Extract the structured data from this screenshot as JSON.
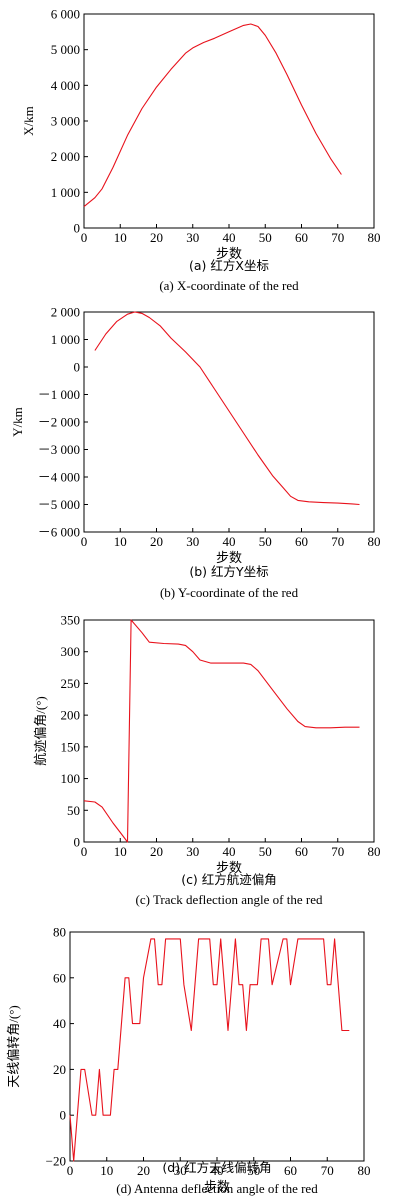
{
  "chart_data": [
    {
      "type": "line",
      "ylabel": "X/km",
      "xlabel": "步数",
      "caption_cn": "(a) 红方X坐标",
      "caption_en": "(a) X-coordinate of the red",
      "xlim": [
        0,
        80
      ],
      "ylim": [
        0,
        6000
      ],
      "x_ticks": [
        "0",
        "10",
        "20",
        "30",
        "40",
        "50",
        "60",
        "70",
        "80"
      ],
      "y_ticks": [
        "0",
        "1 000",
        "2 000",
        "3 000",
        "4 000",
        "5 000",
        "6 000"
      ],
      "series": [
        {
          "color": "#e8121c",
          "x": [
            0,
            3,
            5,
            8,
            12,
            16,
            20,
            24,
            28,
            30,
            33,
            36,
            40,
            44,
            46,
            48,
            50,
            53,
            56,
            60,
            64,
            68,
            71
          ],
          "y": [
            600,
            850,
            1100,
            1700,
            2600,
            3350,
            3950,
            4450,
            4900,
            5050,
            5200,
            5320,
            5500,
            5680,
            5720,
            5650,
            5400,
            4900,
            4300,
            3450,
            2650,
            1950,
            1500
          ]
        }
      ]
    },
    {
      "type": "line",
      "ylabel": "Y/km",
      "xlabel": "步数",
      "caption_cn": "(b) 红方Y坐标",
      "caption_en": "(b) Y-coordinate of the red",
      "xlim": [
        0,
        80
      ],
      "ylim": [
        -6000,
        2000
      ],
      "x_ticks": [
        "0",
        "10",
        "20",
        "30",
        "40",
        "50",
        "60",
        "70",
        "80"
      ],
      "y_ticks": [
        "2 000",
        "1 000",
        "0",
        "－1 000",
        "－2 000",
        "－3 000",
        "－4 000",
        "－5 000",
        "－6 000"
      ],
      "series": [
        {
          "color": "#e8121c",
          "x": [
            3,
            6,
            9,
            12,
            14,
            16,
            18,
            21,
            24,
            28,
            32,
            36,
            40,
            44,
            48,
            52,
            55,
            57,
            59,
            62,
            66,
            70,
            74,
            76
          ],
          "y": [
            600,
            1200,
            1650,
            1920,
            2000,
            1950,
            1800,
            1500,
            1050,
            550,
            0,
            -800,
            -1600,
            -2400,
            -3200,
            -3950,
            -4400,
            -4700,
            -4850,
            -4900,
            -4930,
            -4950,
            -4980,
            -5000
          ]
        }
      ]
    },
    {
      "type": "line",
      "ylabel": "航迹偏角/(°)",
      "xlabel": "步数",
      "caption_cn": "(c) 红方航迹偏角",
      "caption_en": "(c) Track deflection angle of the red",
      "xlim": [
        0,
        80
      ],
      "ylim": [
        0,
        350
      ],
      "x_ticks": [
        "0",
        "10",
        "20",
        "30",
        "40",
        "50",
        "60",
        "70",
        "80"
      ],
      "y_ticks": [
        "0",
        "50",
        "100",
        "150",
        "200",
        "250",
        "300",
        "350"
      ],
      "series": [
        {
          "color": "#e8121c",
          "x": [
            0,
            3,
            5,
            8,
            10,
            12,
            13,
            16,
            18,
            22,
            26,
            28,
            30,
            32,
            35,
            40,
            44,
            46,
            48,
            52,
            56,
            59,
            61,
            64,
            68,
            72,
            76
          ],
          "y": [
            65,
            63,
            55,
            30,
            15,
            0,
            350,
            330,
            315,
            313,
            312,
            310,
            300,
            287,
            282,
            282,
            282,
            280,
            270,
            240,
            210,
            190,
            182,
            180,
            180,
            181,
            181
          ]
        }
      ]
    },
    {
      "type": "line",
      "ylabel": "天线偏转角/(°)",
      "xlabel": "步数",
      "caption_cn": "(d) 红方天线偏转角",
      "caption_en": "(d) Antenna deflection angle of the red",
      "xlim": [
        0,
        80
      ],
      "ylim": [
        -20,
        80
      ],
      "x_ticks": [
        "0",
        "10",
        "20",
        "30",
        "40",
        "50",
        "60",
        "70",
        "80"
      ],
      "y_ticks": [
        "−20",
        "0",
        "20",
        "40",
        "60",
        "80"
      ],
      "series": [
        {
          "color": "#e8121c",
          "x": [
            0,
            1,
            3,
            4,
            6,
            7,
            8,
            9,
            11,
            12,
            13,
            15,
            16,
            17,
            19,
            20,
            22,
            23,
            24,
            25,
            26,
            30,
            31,
            33,
            35,
            38,
            39,
            40,
            41,
            43,
            45,
            46,
            47,
            48,
            49,
            51,
            52,
            54,
            55,
            58,
            59,
            60,
            62,
            63,
            66,
            69,
            70,
            71,
            72,
            74,
            76
          ],
          "y": [
            0,
            -20,
            20,
            20,
            0,
            0,
            20,
            0,
            0,
            20,
            20,
            60,
            60,
            40,
            40,
            60,
            77,
            77,
            57,
            57,
            77,
            77,
            57,
            37,
            77,
            77,
            57,
            57,
            77,
            37,
            77,
            57,
            57,
            37,
            57,
            57,
            77,
            77,
            57,
            77,
            77,
            57,
            77,
            77,
            77,
            77,
            57,
            57,
            77,
            37,
            37
          ]
        }
      ]
    }
  ]
}
